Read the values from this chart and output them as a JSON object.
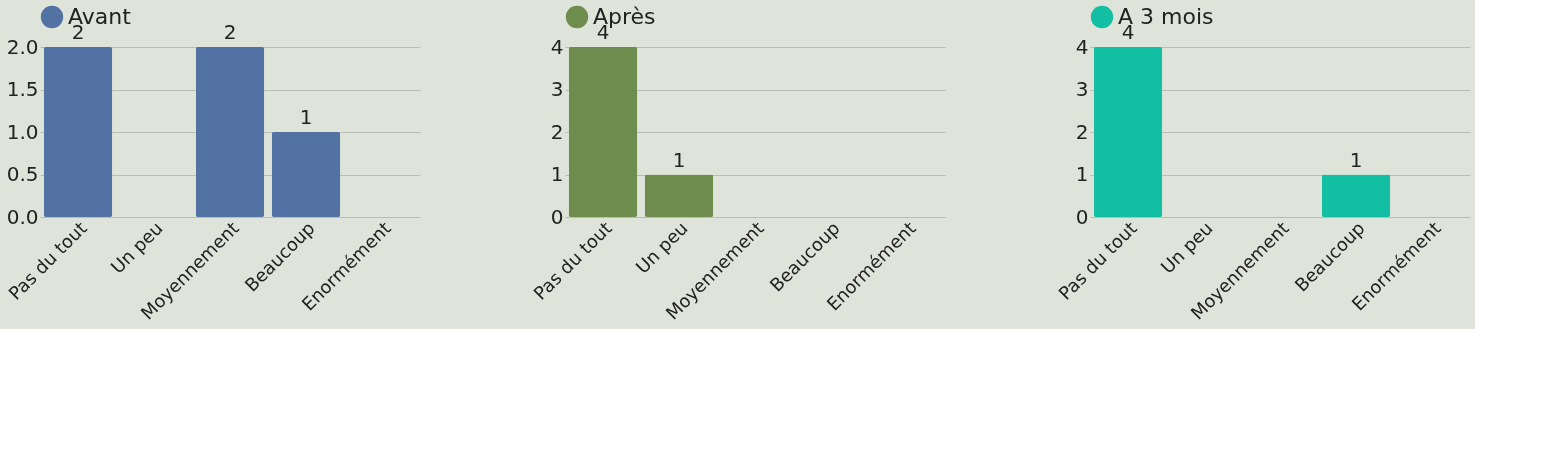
{
  "chart_data": [
    {
      "type": "bar",
      "categories": [
        "Pas du tout",
        "Un peu",
        "Moyennement",
        "Beaucoup",
        "Enormément"
      ],
      "series": [
        {
          "name": "Avant",
          "color": "#5272a3",
          "values": [
            2,
            0,
            2,
            1,
            0
          ]
        }
      ],
      "value_labels": [
        "2",
        null,
        "2",
        "1",
        null
      ],
      "ylim": [
        0,
        2
      ],
      "yticks": [
        {
          "value": 0,
          "label": "0.0"
        },
        {
          "value": 0.5,
          "label": "0.5"
        },
        {
          "value": 1,
          "label": "1.0"
        },
        {
          "value": 1.5,
          "label": "1.5"
        },
        {
          "value": 2,
          "label": "2.0"
        }
      ],
      "grid": "y",
      "legend": "top"
    },
    {
      "type": "bar",
      "categories": [
        "Pas du tout",
        "Un peu",
        "Moyennement",
        "Beaucoup",
        "Enormément"
      ],
      "series": [
        {
          "name": "Après",
          "color": "#6e8c4e",
          "values": [
            4,
            1,
            0,
            0,
            0
          ]
        }
      ],
      "value_labels": [
        "4",
        "1",
        null,
        null,
        null
      ],
      "ylim": [
        0,
        4
      ],
      "yticks": [
        0,
        1,
        2,
        3,
        4
      ],
      "grid": "y",
      "legend": "top"
    },
    {
      "type": "bar",
      "categories": [
        "Pas du tout",
        "Un peu",
        "Moyennement",
        "Beaucoup",
        "Enormément"
      ],
      "series": [
        {
          "name": "A 3 mois",
          "color": "#13bfa3",
          "values": [
            4,
            0,
            0,
            1,
            0
          ]
        }
      ],
      "value_labels": [
        "4",
        null,
        null,
        "1",
        null
      ],
      "ylim": [
        0,
        4
      ],
      "yticks": [
        0,
        1,
        2,
        3,
        4
      ],
      "grid": "y",
      "legend": "top"
    }
  ]
}
